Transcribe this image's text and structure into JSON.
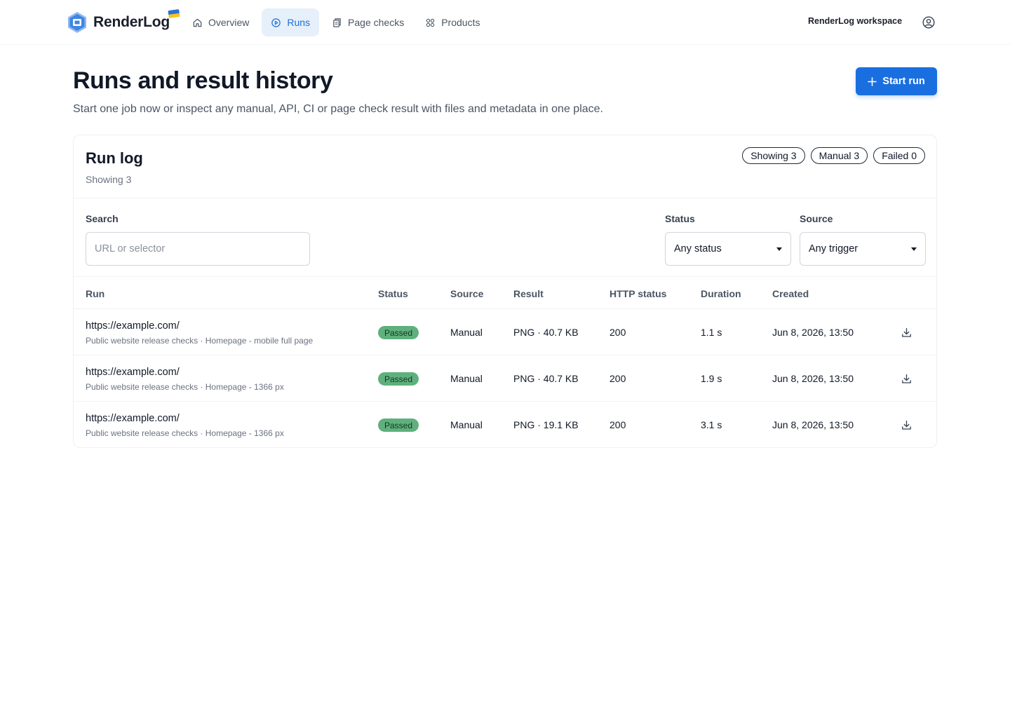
{
  "brand": {
    "name": "RenderLog"
  },
  "nav": {
    "items": [
      {
        "label": "Overview",
        "icon": "home-icon"
      },
      {
        "label": "Runs",
        "icon": "play-circle-icon",
        "active": true
      },
      {
        "label": "Page checks",
        "icon": "clipboard-icon"
      },
      {
        "label": "Products",
        "icon": "grid-icon"
      }
    ],
    "workspace": "RenderLog workspace"
  },
  "header": {
    "title": "Runs and result history",
    "subtitle": "Start one job now or inspect any manual, API, CI or page check result with files and metadata in one place.",
    "start_button": "Start run"
  },
  "card": {
    "title": "Run log",
    "subtitle": "Showing 3",
    "pills": [
      "Showing 3",
      "Manual 3",
      "Failed 0"
    ]
  },
  "filters": {
    "search_label": "Search",
    "search_placeholder": "URL or selector",
    "status_label": "Status",
    "status_value": "Any status",
    "source_label": "Source",
    "source_value": "Any trigger"
  },
  "table": {
    "columns": [
      "Run",
      "Status",
      "Source",
      "Result",
      "HTTP status",
      "Duration",
      "Created"
    ],
    "rows": [
      {
        "url": "https://example.com/",
        "meta": "Public website release checks · Homepage - mobile full page",
        "status": "Passed",
        "source": "Manual",
        "result": "PNG · 40.7 KB",
        "http": "200",
        "duration": "1.1 s",
        "created": "Jun 8, 2026, 13:50"
      },
      {
        "url": "https://example.com/",
        "meta": "Public website release checks · Homepage - 1366 px",
        "status": "Passed",
        "source": "Manual",
        "result": "PNG · 40.7 KB",
        "http": "200",
        "duration": "1.9 s",
        "created": "Jun 8, 2026, 13:50"
      },
      {
        "url": "https://example.com/",
        "meta": "Public website release checks · Homepage - 1366 px",
        "status": "Passed",
        "source": "Manual",
        "result": "PNG · 19.1 KB",
        "http": "200",
        "duration": "3.1 s",
        "created": "Jun 8, 2026, 13:50"
      }
    ]
  },
  "colors": {
    "accent": "#1a6fe0",
    "nav_active_bg": "#e6f0fb",
    "badge_passed": "#5fb07c"
  }
}
